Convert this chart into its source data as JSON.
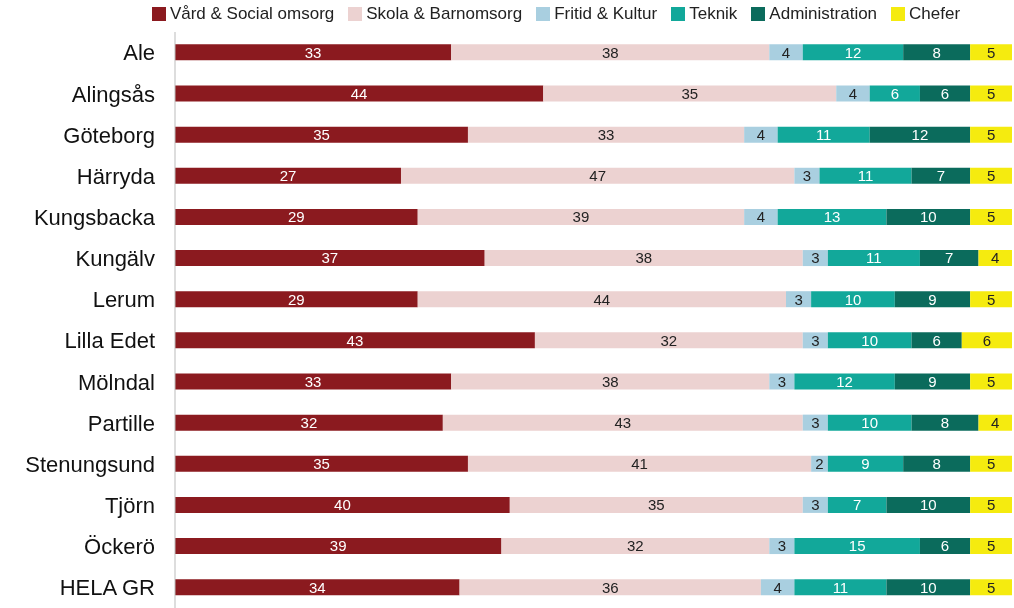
{
  "chart_data": {
    "type": "bar",
    "orientation": "horizontal",
    "stacked": true,
    "data_labels": true,
    "legend": "top",
    "grid": false,
    "tick_labels": "y",
    "xlim": [
      0,
      100
    ],
    "categories": [
      "Ale",
      "Alingsås",
      "Göteborg",
      "Härryda",
      "Kungsbacka",
      "Kungälv",
      "Lerum",
      "Lilla Edet",
      "Mölndal",
      "Partille",
      "Stenungsund",
      "Tjörn",
      "Öckerö",
      "HELA GR"
    ],
    "series": [
      {
        "name": "Vård & Social omsorg",
        "color": "#8b1a1f",
        "values": [
          33,
          44,
          35,
          27,
          29,
          37,
          29,
          43,
          33,
          32,
          35,
          40,
          39,
          34
        ]
      },
      {
        "name": "Skola & Barnomsorg",
        "color": "#ecd2d1",
        "values": [
          38,
          35,
          33,
          47,
          39,
          38,
          44,
          32,
          38,
          43,
          41,
          35,
          32,
          36
        ]
      },
      {
        "name": "Fritid & Kultur",
        "color": "#a9cfe0",
        "values": [
          4,
          4,
          4,
          3,
          4,
          3,
          3,
          3,
          3,
          3,
          2,
          3,
          3,
          4
        ]
      },
      {
        "name": "Teknik",
        "color": "#12a89a",
        "values": [
          12,
          6,
          11,
          11,
          13,
          11,
          10,
          10,
          12,
          10,
          9,
          7,
          15,
          11
        ]
      },
      {
        "name": "Administration",
        "color": "#0b6b5c",
        "values": [
          8,
          6,
          12,
          7,
          10,
          7,
          9,
          6,
          9,
          8,
          8,
          10,
          6,
          10
        ]
      },
      {
        "name": "Chefer",
        "color": "#f5eb0f",
        "values": [
          5,
          5,
          5,
          5,
          5,
          4,
          5,
          6,
          5,
          4,
          5,
          5,
          5,
          5
        ]
      }
    ]
  }
}
